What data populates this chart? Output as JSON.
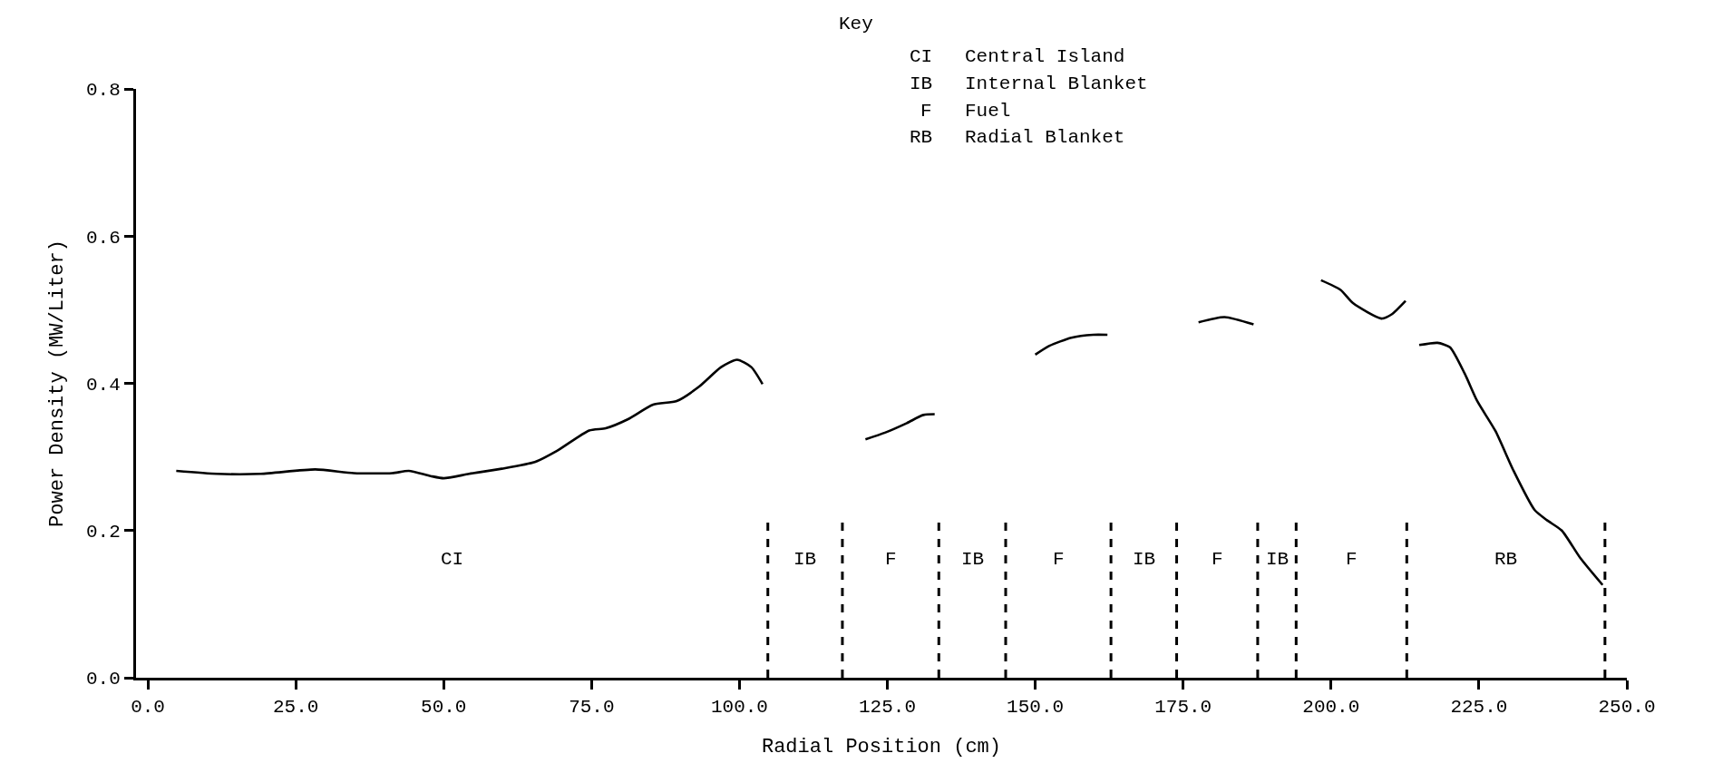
{
  "chart_data": {
    "type": "line",
    "xlabel": "Radial Position (cm)",
    "ylabel": "Power Density (MW/Liter)",
    "x": [
      4.8,
      11.7,
      19.1,
      28.3,
      34.8,
      41.3,
      44.1,
      47.8,
      50.0,
      54.3,
      59.8,
      65.4,
      69.1,
      74.6,
      77.4,
      81.1,
      85.4,
      89.4,
      93.1,
      96.9,
      99.6,
      102.0,
      103.9,
      112,
      121.3,
      124.6,
      128.3,
      131.1,
      133.0,
      140,
      150.0,
      152.4,
      156.1,
      159.8,
      162.2,
      170,
      177.6,
      182.0,
      186.9,
      193,
      198.3,
      201.6,
      203.7,
      208.5,
      210.3,
      212.6,
      213.8,
      214.9,
      218.0,
      220.1,
      222.6,
      224.7,
      227.8,
      230.8,
      234.4,
      236.5,
      239.0,
      242.1,
      245.9
    ],
    "series": [
      {
        "color": "#000000",
        "values": [
          0.281,
          0.277,
          0.277,
          0.283,
          0.278,
          0.278,
          0.281,
          0.274,
          0.271,
          0.277,
          0.284,
          0.293,
          0.308,
          0.336,
          0.339,
          0.351,
          0.371,
          0.376,
          0.395,
          0.422,
          0.432,
          0.422,
          0.399,
          null,
          0.324,
          0.333,
          0.346,
          0.357,
          0.358,
          null,
          0.439,
          0.451,
          0.462,
          0.466,
          0.466,
          null,
          0.483,
          0.49,
          0.48,
          null,
          0.54,
          0.527,
          0.509,
          0.488,
          0.494,
          0.512,
          null,
          0.452,
          0.455,
          0.449,
          0.413,
          0.376,
          0.335,
          0.282,
          0.228,
          0.214,
          0.2,
          0.163,
          0.126
        ]
      }
    ],
    "xlim": [
      -2,
      250
    ],
    "xticks": [
      {
        "value": 0,
        "label": "0.0"
      },
      {
        "value": 25,
        "label": "25.0"
      },
      {
        "value": 50,
        "label": "50.0"
      },
      {
        "value": 75,
        "label": "75.0"
      },
      {
        "value": 100,
        "label": "100.0"
      },
      {
        "value": 125,
        "label": "125.0"
      },
      {
        "value": 150,
        "label": "150.0"
      },
      {
        "value": 175,
        "label": "175.0"
      },
      {
        "value": 200,
        "label": "200.0"
      },
      {
        "value": 225,
        "label": "225.0"
      },
      {
        "value": 250,
        "label": "250.0"
      }
    ],
    "ylim": [
      0,
      0.8
    ],
    "yticks": [
      {
        "value": 0,
        "label": "0.0"
      },
      {
        "value": 0.2,
        "label": "0.2"
      },
      {
        "value": 0.4,
        "label": "0.4"
      },
      {
        "value": 0.6,
        "label": "0.6"
      },
      {
        "value": 0.8,
        "label": "0.8"
      }
    ],
    "line_style": "solid",
    "ref_lines": [
      {
        "axis": "x",
        "value": 104.8,
        "line_style": "dashed"
      },
      {
        "axis": "x",
        "value": 117.4,
        "line_style": "dashed"
      },
      {
        "axis": "x",
        "value": 133.7,
        "line_style": "dashed"
      },
      {
        "axis": "x",
        "value": 145.0,
        "line_style": "dashed"
      },
      {
        "axis": "x",
        "value": 162.8,
        "line_style": "dashed"
      },
      {
        "axis": "x",
        "value": 173.9,
        "line_style": "dashed"
      },
      {
        "axis": "x",
        "value": 187.6,
        "line_style": "dashed"
      },
      {
        "axis": "x",
        "value": 194.1,
        "line_style": "dashed"
      },
      {
        "axis": "x",
        "value": 212.8,
        "line_style": "dashed"
      },
      {
        "axis": "x",
        "value": 246.3,
        "line_style": "dashed"
      }
    ],
    "annotations": [
      "Key",
      "CI",
      "Central Island",
      "IB",
      "Internal Blanket",
      "F",
      "Fuel",
      "RB",
      "Radial Blanket",
      "CI",
      "IB",
      "F",
      "IB",
      "F",
      "IB",
      "F",
      "IB",
      "F",
      "RB"
    ]
  }
}
